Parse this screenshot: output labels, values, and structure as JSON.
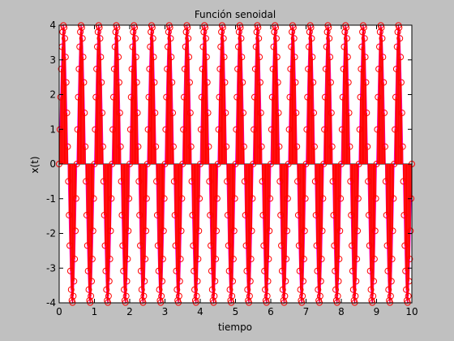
{
  "chart_data": {
    "type": "line",
    "title": "Función senoidal",
    "xlabel": "tiempo",
    "ylabel": "x(t)",
    "xlim": [
      0,
      10
    ],
    "ylim": [
      -4,
      4
    ],
    "xticks": [
      0,
      1,
      2,
      3,
      4,
      5,
      6,
      7,
      8,
      9,
      10
    ],
    "yticks": [
      -4,
      -3,
      -2,
      -1,
      0,
      1,
      2,
      3,
      4
    ],
    "grid": false,
    "series": [
      {
        "style": "stem-with-circle-markers",
        "color": "#ff0000",
        "marker_color": "#ff0000",
        "function": "4*sin(2*pi*2*t)",
        "amplitude": 4,
        "frequency_hz": 2,
        "t_start": 0,
        "t_end": 10,
        "t_step": 0.02
      }
    ],
    "envelope_line": {
      "color": "#ff00ff"
    }
  }
}
